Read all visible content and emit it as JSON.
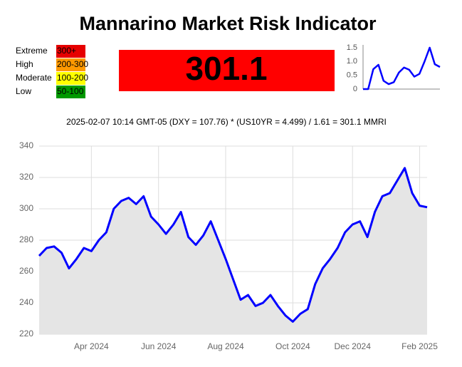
{
  "title": "Mannarino Market Risk Indicator",
  "risk_levels": [
    {
      "label": "Extreme",
      "range": "300+",
      "color": "#e60000"
    },
    {
      "label": "High",
      "range": "200-300",
      "color": "#ff9900"
    },
    {
      "label": "Moderate",
      "range": "100-200",
      "color": "#ffff00"
    },
    {
      "label": "Low",
      "range": "50-100",
      "color": "#009900"
    }
  ],
  "current_value": "301.1",
  "current_color": "#ff0000",
  "formula": "2025-02-07 10:14 GMT-05 (DXY = 107.76) * (US10YR = 4.499) / 1.61 = 301.1 MMRI",
  "chart_data": [
    {
      "type": "line",
      "color": "#0000ff",
      "values": [
        0,
        0,
        0.72,
        0.88,
        0.3,
        0.18,
        0.25,
        0.6,
        0.78,
        0.7,
        0.45,
        0.55,
        1.0,
        1.5,
        0.9,
        0.8
      ],
      "ylim": [
        0,
        1.6
      ],
      "yticks": [
        0,
        0.5,
        {
          "value": 1,
          "label": "1.0"
        },
        1.5
      ],
      "grid": false
    },
    {
      "type": "line",
      "color": "#0000ff",
      "fill": "#e5e5e5",
      "categories": [
        null,
        null,
        null,
        null,
        null,
        null,
        null,
        "Apr 2024",
        null,
        null,
        null,
        null,
        null,
        null,
        null,
        null,
        "Jun 2024",
        null,
        null,
        null,
        null,
        null,
        null,
        null,
        null,
        "Aug 2024",
        null,
        null,
        null,
        null,
        null,
        null,
        null,
        null,
        "Oct 2024",
        null,
        null,
        null,
        null,
        null,
        null,
        null,
        "Dec 2024",
        null,
        null,
        null,
        null,
        null,
        null,
        null,
        null,
        "Feb 2025",
        null
      ],
      "values": [
        270,
        275,
        276,
        272,
        262,
        268,
        275,
        273,
        280,
        285,
        300,
        305,
        307,
        303,
        308,
        295,
        290,
        284,
        290,
        298,
        282,
        277,
        283,
        292,
        280,
        268,
        255,
        242,
        245,
        238,
        240,
        245,
        238,
        232,
        228,
        233,
        236,
        252,
        262,
        268,
        275,
        285,
        290,
        292,
        282,
        298,
        308,
        310,
        318,
        326,
        310,
        302,
        301
      ],
      "ylim": [
        220,
        340
      ],
      "yticks": [
        220,
        240,
        260,
        280,
        300,
        320,
        340
      ],
      "grid": true
    }
  ]
}
